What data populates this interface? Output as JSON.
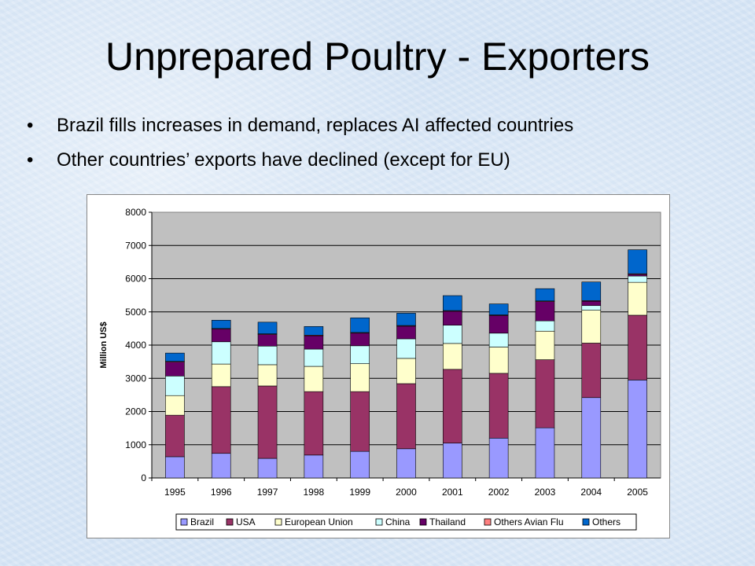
{
  "slide": {
    "title": "Unprepared Poultry - Exporters",
    "bullets": [
      "Brazil fills increases in demand, replaces AI affected countries",
      "Other countries’ exports have declined (except for EU)"
    ],
    "bullet_glyph": "•"
  },
  "chart_data": {
    "type": "bar",
    "stacked": true,
    "ylabel": "Million US$",
    "ylim": [
      0,
      8000
    ],
    "yticks": [
      0,
      1000,
      2000,
      3000,
      4000,
      5000,
      6000,
      7000,
      8000
    ],
    "grid": true,
    "legend_position": "bottom",
    "categories": [
      "1995",
      "1996",
      "1997",
      "1998",
      "1999",
      "2000",
      "2001",
      "2002",
      "2003",
      "2004",
      "2005"
    ],
    "series": [
      {
        "name": "Brazil",
        "color": "#9999ff",
        "values": [
          640,
          740,
          590,
          690,
          800,
          880,
          1050,
          1200,
          1510,
          2420,
          2950
        ]
      },
      {
        "name": "USA",
        "color": "#993366",
        "values": [
          1250,
          2010,
          2180,
          1910,
          1800,
          1960,
          2220,
          1950,
          2050,
          1640,
          1950
        ]
      },
      {
        "name": "European Union",
        "color": "#ffffcc",
        "values": [
          590,
          680,
          640,
          760,
          840,
          760,
          780,
          790,
          860,
          990,
          990
        ]
      },
      {
        "name": "China",
        "color": "#ccffff",
        "values": [
          590,
          670,
          560,
          520,
          540,
          590,
          550,
          420,
          310,
          140,
          190
        ]
      },
      {
        "name": "Thailand",
        "color": "#660066",
        "values": [
          420,
          380,
          350,
          400,
          380,
          380,
          420,
          530,
          580,
          130,
          50
        ]
      },
      {
        "name": "Others Avian Flu",
        "color": "#ff8080",
        "values": [
          20,
          20,
          20,
          20,
          20,
          20,
          20,
          20,
          20,
          20,
          20
        ]
      },
      {
        "name": "Others",
        "color": "#0066cc",
        "values": [
          250,
          250,
          350,
          260,
          440,
          370,
          450,
          330,
          370,
          560,
          720
        ]
      }
    ]
  }
}
